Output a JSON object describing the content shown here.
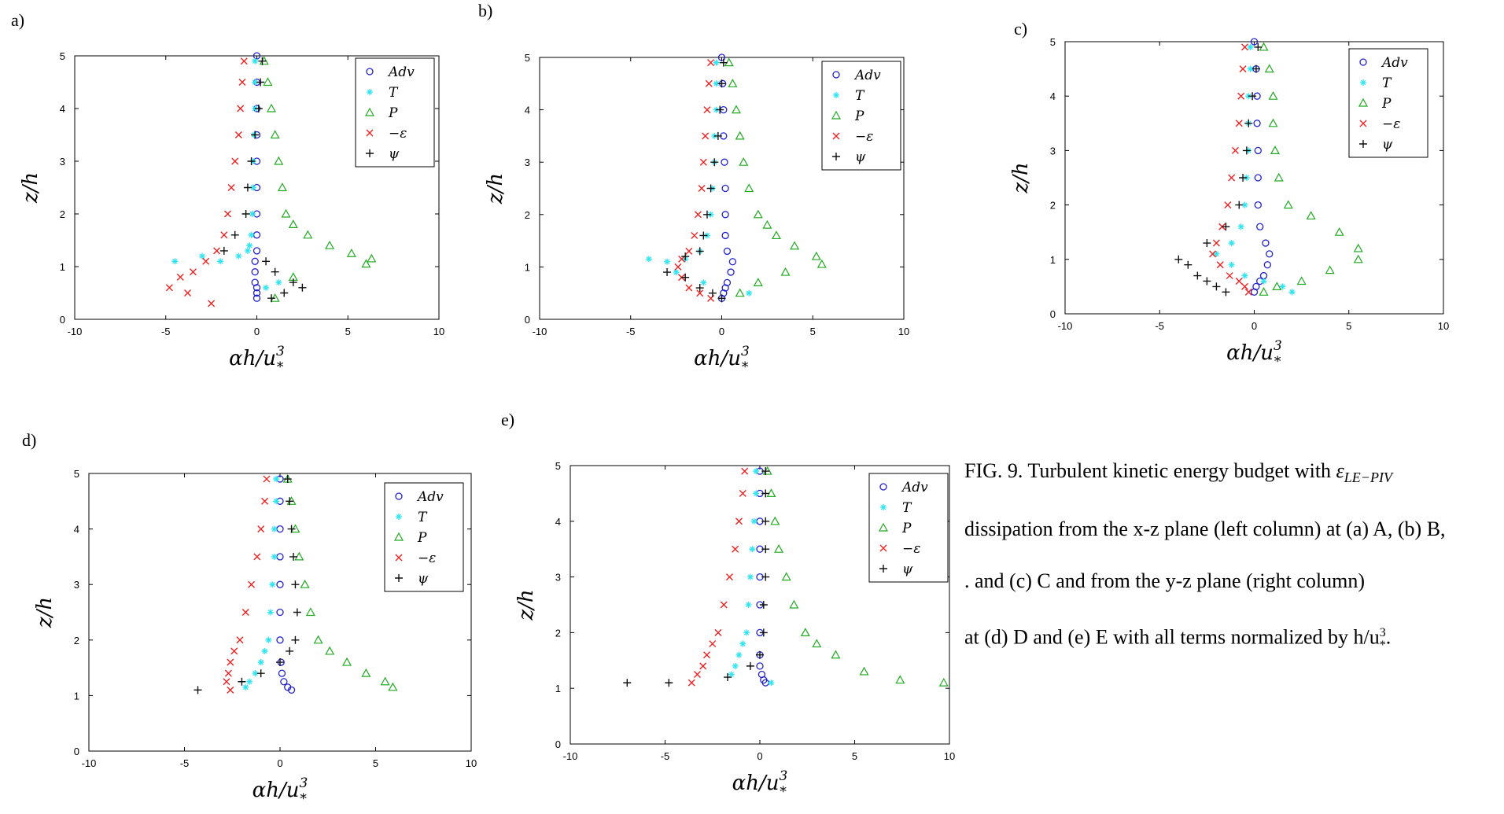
{
  "panel_labels": [
    "a)",
    "b)",
    "c)",
    "d)",
    "e)"
  ],
  "caption": {
    "line1_prefix": "FIG. 9.  Turbulent kinetic energy budget with ",
    "line1_math": "ε",
    "line1_sub": "LE−PIV",
    "line2": "dissipation from the x-z plane (left column) at (a) A, (b) B,",
    "line3": ". and (c) C and from the y-z plane (right column)",
    "line4_prefix": "at (d) D and (e) E with all terms normalized by h/u",
    "line4_sup": "3",
    "line4_sub": "*",
    "line4_suffix": "."
  },
  "colors": {
    "Adv": "#2222cc",
    "T": "#33e5f0",
    "P": "#22aa22",
    "eps": "#ee2222",
    "psi": "#111111"
  },
  "chart_data": [
    {
      "type": "scatter",
      "panel": "a)",
      "xlabel": "αh/u³*",
      "ylabel": "z/h",
      "xlim": [
        -10,
        10
      ],
      "ylim": [
        0,
        5
      ],
      "xticks": [
        -10,
        -5,
        0,
        5,
        10
      ],
      "yticks": [
        0,
        1,
        2,
        3,
        4,
        5
      ],
      "grid": false,
      "legend_position": "top-right",
      "series": [
        {
          "name": "Adv",
          "marker": "circle",
          "color_key": "Adv",
          "x": [
            0.0,
            0.0,
            0.0,
            0.0,
            0.0,
            0.0,
            0.0,
            0.0,
            0.0,
            -0.1,
            -0.1,
            -0.1,
            0.0,
            0.0,
            0.0
          ],
          "y": [
            5.0,
            4.5,
            4.0,
            3.5,
            3.0,
            2.5,
            2.0,
            1.6,
            1.3,
            1.1,
            0.9,
            0.7,
            0.6,
            0.5,
            0.4
          ]
        },
        {
          "name": "T",
          "marker": "asterisk",
          "color_key": "T",
          "x": [
            -0.1,
            -0.1,
            -0.1,
            -0.15,
            -0.2,
            -0.2,
            -0.25,
            -0.3,
            -0.4,
            -0.5,
            -1.0,
            -2.0,
            -3.0,
            -4.5,
            0.5,
            1.2
          ],
          "y": [
            4.9,
            4.5,
            4.0,
            3.5,
            3.0,
            2.5,
            2.0,
            1.6,
            1.4,
            1.3,
            1.2,
            1.1,
            1.2,
            1.1,
            0.6,
            0.7
          ]
        },
        {
          "name": "P",
          "marker": "triangle",
          "color_key": "P",
          "x": [
            0.4,
            0.6,
            0.8,
            1.0,
            1.2,
            1.4,
            1.6,
            2.0,
            2.8,
            4.0,
            5.2,
            6.3,
            6.0,
            2.0,
            1.0
          ],
          "y": [
            4.9,
            4.5,
            4.0,
            3.5,
            3.0,
            2.5,
            2.0,
            1.8,
            1.6,
            1.4,
            1.25,
            1.15,
            1.05,
            0.8,
            0.4
          ]
        },
        {
          "name": "−ε",
          "marker": "x",
          "color_key": "eps",
          "x": [
            -0.7,
            -0.8,
            -0.9,
            -1.0,
            -1.2,
            -1.4,
            -1.6,
            -1.8,
            -2.2,
            -2.8,
            -3.5,
            -4.2,
            -4.8,
            -3.8,
            -2.5
          ],
          "y": [
            4.9,
            4.5,
            4.0,
            3.5,
            3.0,
            2.5,
            2.0,
            1.6,
            1.3,
            1.1,
            0.9,
            0.8,
            0.6,
            0.5,
            0.3
          ]
        },
        {
          "name": "ψ",
          "marker": "plus",
          "color_key": "psi",
          "x": [
            0.3,
            0.2,
            0.1,
            -0.1,
            -0.3,
            -0.5,
            -0.6,
            -1.2,
            -1.8,
            0.5,
            1.0,
            2.0,
            2.5,
            1.5,
            0.8
          ],
          "y": [
            4.9,
            4.5,
            4.0,
            3.5,
            3.0,
            2.5,
            2.0,
            1.6,
            1.3,
            1.1,
            0.9,
            0.7,
            0.6,
            0.5,
            0.4
          ]
        }
      ]
    },
    {
      "type": "scatter",
      "panel": "b)",
      "xlabel": "αh/u³*",
      "ylabel": "z/h",
      "xlim": [
        -10,
        10
      ],
      "ylim": [
        0,
        5
      ],
      "xticks": [
        -10,
        -5,
        0,
        5,
        10
      ],
      "yticks": [
        0,
        1,
        2,
        3,
        4,
        5
      ],
      "grid": false,
      "legend_position": "top-right",
      "series": [
        {
          "name": "Adv",
          "marker": "circle",
          "color_key": "Adv",
          "x": [
            0.0,
            0.05,
            0.1,
            0.1,
            0.15,
            0.2,
            0.2,
            0.2,
            0.3,
            0.6,
            0.5,
            0.3,
            0.2,
            0.1,
            0.0
          ],
          "y": [
            5.0,
            4.5,
            4.0,
            3.5,
            3.0,
            2.5,
            2.0,
            1.6,
            1.3,
            1.1,
            0.9,
            0.7,
            0.6,
            0.5,
            0.4
          ]
        },
        {
          "name": "T",
          "marker": "asterisk",
          "color_key": "T",
          "x": [
            -0.3,
            -0.3,
            -0.3,
            -0.4,
            -0.4,
            -0.5,
            -0.6,
            -0.8,
            -1.2,
            -2.0,
            -3.0,
            -4.0,
            -2.5,
            -1.0,
            1.5
          ],
          "y": [
            4.9,
            4.5,
            4.0,
            3.5,
            3.0,
            2.5,
            2.0,
            1.6,
            1.3,
            1.15,
            1.1,
            1.15,
            0.9,
            0.7,
            0.5
          ]
        },
        {
          "name": "P",
          "marker": "triangle",
          "color_key": "P",
          "x": [
            0.4,
            0.6,
            0.8,
            1.0,
            1.2,
            1.5,
            2.0,
            2.5,
            3.0,
            4.0,
            5.2,
            5.5,
            3.5,
            2.0,
            1.0
          ],
          "y": [
            4.9,
            4.5,
            4.0,
            3.5,
            3.0,
            2.5,
            2.0,
            1.8,
            1.6,
            1.4,
            1.2,
            1.05,
            0.9,
            0.7,
            0.5
          ]
        },
        {
          "name": "−ε",
          "marker": "x",
          "color_key": "eps",
          "x": [
            -0.6,
            -0.7,
            -0.8,
            -0.9,
            -1.0,
            -1.1,
            -1.3,
            -1.5,
            -1.8,
            -2.2,
            -2.4,
            -2.2,
            -1.8,
            -1.2,
            -0.6
          ],
          "y": [
            4.9,
            4.5,
            4.0,
            3.5,
            3.0,
            2.5,
            2.0,
            1.6,
            1.3,
            1.15,
            1.0,
            0.8,
            0.6,
            0.5,
            0.4
          ]
        },
        {
          "name": "ψ",
          "marker": "plus",
          "color_key": "psi",
          "x": [
            0.1,
            0.0,
            -0.1,
            -0.2,
            -0.4,
            -0.6,
            -0.8,
            -1.0,
            -1.2,
            -2.0,
            -3.0,
            -2.0,
            -1.2,
            -0.5,
            0.0
          ],
          "y": [
            4.9,
            4.5,
            4.0,
            3.5,
            3.0,
            2.5,
            2.0,
            1.6,
            1.3,
            1.2,
            0.9,
            0.8,
            0.6,
            0.5,
            0.4
          ]
        }
      ]
    },
    {
      "type": "scatter",
      "panel": "c)",
      "xlabel": "αh/u³*",
      "ylabel": "z/h",
      "xlim": [
        -10,
        10
      ],
      "ylim": [
        0,
        5
      ],
      "xticks": [
        -10,
        -5,
        0,
        5,
        10
      ],
      "yticks": [
        0,
        1,
        2,
        3,
        4,
        5
      ],
      "grid": false,
      "legend_position": "top-right",
      "series": [
        {
          "name": "Adv",
          "marker": "circle",
          "color_key": "Adv",
          "x": [
            0.0,
            0.1,
            0.15,
            0.15,
            0.2,
            0.2,
            0.2,
            0.3,
            0.6,
            0.8,
            0.7,
            0.5,
            0.3,
            0.1,
            0.0
          ],
          "y": [
            5.0,
            4.5,
            4.0,
            3.5,
            3.0,
            2.5,
            2.0,
            1.6,
            1.3,
            1.1,
            0.9,
            0.7,
            0.6,
            0.5,
            0.4
          ]
        },
        {
          "name": "T",
          "marker": "asterisk",
          "color_key": "T",
          "x": [
            -0.2,
            -0.2,
            -0.3,
            -0.3,
            -0.3,
            -0.4,
            -0.5,
            -0.7,
            -1.2,
            -2.0,
            -1.2,
            -0.5,
            0.5,
            1.5,
            2.0
          ],
          "y": [
            4.9,
            4.5,
            4.0,
            3.5,
            3.0,
            2.5,
            2.0,
            1.6,
            1.3,
            1.1,
            0.9,
            0.7,
            0.6,
            0.5,
            0.4
          ]
        },
        {
          "name": "P",
          "marker": "triangle",
          "color_key": "P",
          "x": [
            0.5,
            0.8,
            1.0,
            1.0,
            1.1,
            1.3,
            1.8,
            3.0,
            4.5,
            5.5,
            5.5,
            4.0,
            2.5,
            1.2,
            0.5
          ],
          "y": [
            4.9,
            4.5,
            4.0,
            3.5,
            3.0,
            2.5,
            2.0,
            1.8,
            1.5,
            1.2,
            1.0,
            0.8,
            0.6,
            0.5,
            0.4
          ]
        },
        {
          "name": "−ε",
          "marker": "x",
          "color_key": "eps",
          "x": [
            -0.5,
            -0.6,
            -0.7,
            -0.8,
            -1.0,
            -1.2,
            -1.4,
            -1.7,
            -2.0,
            -2.2,
            -1.8,
            -1.3,
            -0.8,
            -0.5,
            -0.3
          ],
          "y": [
            4.9,
            4.5,
            4.0,
            3.5,
            3.0,
            2.5,
            2.0,
            1.6,
            1.3,
            1.1,
            0.9,
            0.7,
            0.6,
            0.5,
            0.4
          ]
        },
        {
          "name": "ψ",
          "marker": "plus",
          "color_key": "psi",
          "x": [
            0.2,
            0.1,
            -0.1,
            -0.3,
            -0.4,
            -0.6,
            -0.8,
            -1.5,
            -2.5,
            -4.0,
            -3.5,
            -3.0,
            -2.5,
            -2.0,
            -1.5
          ],
          "y": [
            4.9,
            4.5,
            4.0,
            3.5,
            3.0,
            2.5,
            2.0,
            1.6,
            1.3,
            1.0,
            0.9,
            0.7,
            0.6,
            0.5,
            0.4
          ]
        }
      ]
    },
    {
      "type": "scatter",
      "panel": "d)",
      "xlabel": "αh/u³*",
      "ylabel": "z/h",
      "xlim": [
        -10,
        10
      ],
      "ylim": [
        0,
        5
      ],
      "xticks": [
        -10,
        -5,
        0,
        5,
        10
      ],
      "yticks": [
        0,
        1,
        2,
        3,
        4,
        5
      ],
      "grid": false,
      "legend_position": "top-right",
      "series": [
        {
          "name": "Adv",
          "marker": "circle",
          "color_key": "Adv",
          "x": [
            0.0,
            0.0,
            0.0,
            0.0,
            0.0,
            0.0,
            0.0,
            0.05,
            0.1,
            0.2,
            0.4,
            0.6
          ],
          "y": [
            4.9,
            4.5,
            4.0,
            3.5,
            3.0,
            2.5,
            2.0,
            1.6,
            1.4,
            1.25,
            1.15,
            1.1
          ]
        },
        {
          "name": "T",
          "marker": "asterisk",
          "color_key": "T",
          "x": [
            -0.2,
            -0.2,
            -0.3,
            -0.3,
            -0.4,
            -0.5,
            -0.6,
            -0.8,
            -1.0,
            -1.3,
            -1.6,
            -1.8
          ],
          "y": [
            4.9,
            4.5,
            4.0,
            3.5,
            3.0,
            2.5,
            2.0,
            1.8,
            1.6,
            1.4,
            1.25,
            1.15
          ]
        },
        {
          "name": "P",
          "marker": "triangle",
          "color_key": "P",
          "x": [
            0.4,
            0.6,
            0.8,
            1.0,
            1.3,
            1.6,
            2.0,
            2.6,
            3.5,
            4.5,
            5.5,
            5.9
          ],
          "y": [
            4.9,
            4.5,
            4.0,
            3.5,
            3.0,
            2.5,
            2.0,
            1.8,
            1.6,
            1.4,
            1.25,
            1.15
          ]
        },
        {
          "name": "−ε",
          "marker": "x",
          "color_key": "eps",
          "x": [
            -0.7,
            -0.8,
            -1.0,
            -1.2,
            -1.5,
            -1.8,
            -2.1,
            -2.4,
            -2.6,
            -2.7,
            -2.8,
            -2.6
          ],
          "y": [
            4.9,
            4.5,
            4.0,
            3.5,
            3.0,
            2.5,
            2.0,
            1.8,
            1.6,
            1.4,
            1.25,
            1.1
          ]
        },
        {
          "name": "ψ",
          "marker": "plus",
          "color_key": "psi",
          "x": [
            0.4,
            0.5,
            0.6,
            0.7,
            0.8,
            0.9,
            0.8,
            0.5,
            0.0,
            -1.0,
            -2.0,
            -4.3
          ],
          "y": [
            4.9,
            4.5,
            4.0,
            3.5,
            3.0,
            2.5,
            2.0,
            1.8,
            1.6,
            1.4,
            1.25,
            1.1
          ]
        }
      ]
    },
    {
      "type": "scatter",
      "panel": "e)",
      "xlabel": "αh/u³*",
      "ylabel": "z/h",
      "xlim": [
        -10,
        10
      ],
      "ylim": [
        0,
        5
      ],
      "xticks": [
        -10,
        -5,
        0,
        5,
        10
      ],
      "yticks": [
        0,
        1,
        2,
        3,
        4,
        5
      ],
      "grid": false,
      "legend_position": "top-right",
      "series": [
        {
          "name": "Adv",
          "marker": "circle",
          "color_key": "Adv",
          "x": [
            0.0,
            0.0,
            0.0,
            0.0,
            0.0,
            0.0,
            0.0,
            0.0,
            0.0,
            0.1,
            0.2,
            0.3
          ],
          "y": [
            4.9,
            4.5,
            4.0,
            3.5,
            3.0,
            2.5,
            2.0,
            1.6,
            1.4,
            1.25,
            1.15,
            1.1
          ]
        },
        {
          "name": "T",
          "marker": "asterisk",
          "color_key": "T",
          "x": [
            -0.2,
            -0.2,
            -0.3,
            -0.4,
            -0.5,
            -0.6,
            -0.7,
            -0.9,
            -1.1,
            -1.3,
            -1.5,
            0.6
          ],
          "y": [
            4.9,
            4.5,
            4.0,
            3.5,
            3.0,
            2.5,
            2.0,
            1.8,
            1.6,
            1.4,
            1.25,
            1.1
          ]
        },
        {
          "name": "P",
          "marker": "triangle",
          "color_key": "P",
          "x": [
            0.4,
            0.6,
            0.8,
            1.0,
            1.4,
            1.8,
            2.4,
            3.0,
            4.0,
            5.5,
            7.4,
            9.7
          ],
          "y": [
            4.9,
            4.5,
            4.0,
            3.5,
            3.0,
            2.5,
            2.0,
            1.8,
            1.6,
            1.3,
            1.15,
            1.1
          ]
        },
        {
          "name": "−ε",
          "marker": "x",
          "color_key": "eps",
          "x": [
            -0.8,
            -0.9,
            -1.1,
            -1.3,
            -1.6,
            -1.9,
            -2.2,
            -2.5,
            -2.8,
            -3.0,
            -3.3,
            -3.6
          ],
          "y": [
            4.9,
            4.5,
            4.0,
            3.5,
            3.0,
            2.5,
            2.0,
            1.8,
            1.6,
            1.4,
            1.25,
            1.1
          ]
        },
        {
          "name": "ψ",
          "marker": "plus",
          "color_key": "psi",
          "x": [
            0.3,
            0.3,
            0.3,
            0.3,
            0.3,
            0.2,
            0.2,
            0.0,
            -0.5,
            -1.7,
            -4.8,
            -7.0
          ],
          "y": [
            4.9,
            4.5,
            4.0,
            3.5,
            3.0,
            2.5,
            2.0,
            1.6,
            1.4,
            1.2,
            1.1,
            1.1
          ]
        }
      ]
    }
  ]
}
